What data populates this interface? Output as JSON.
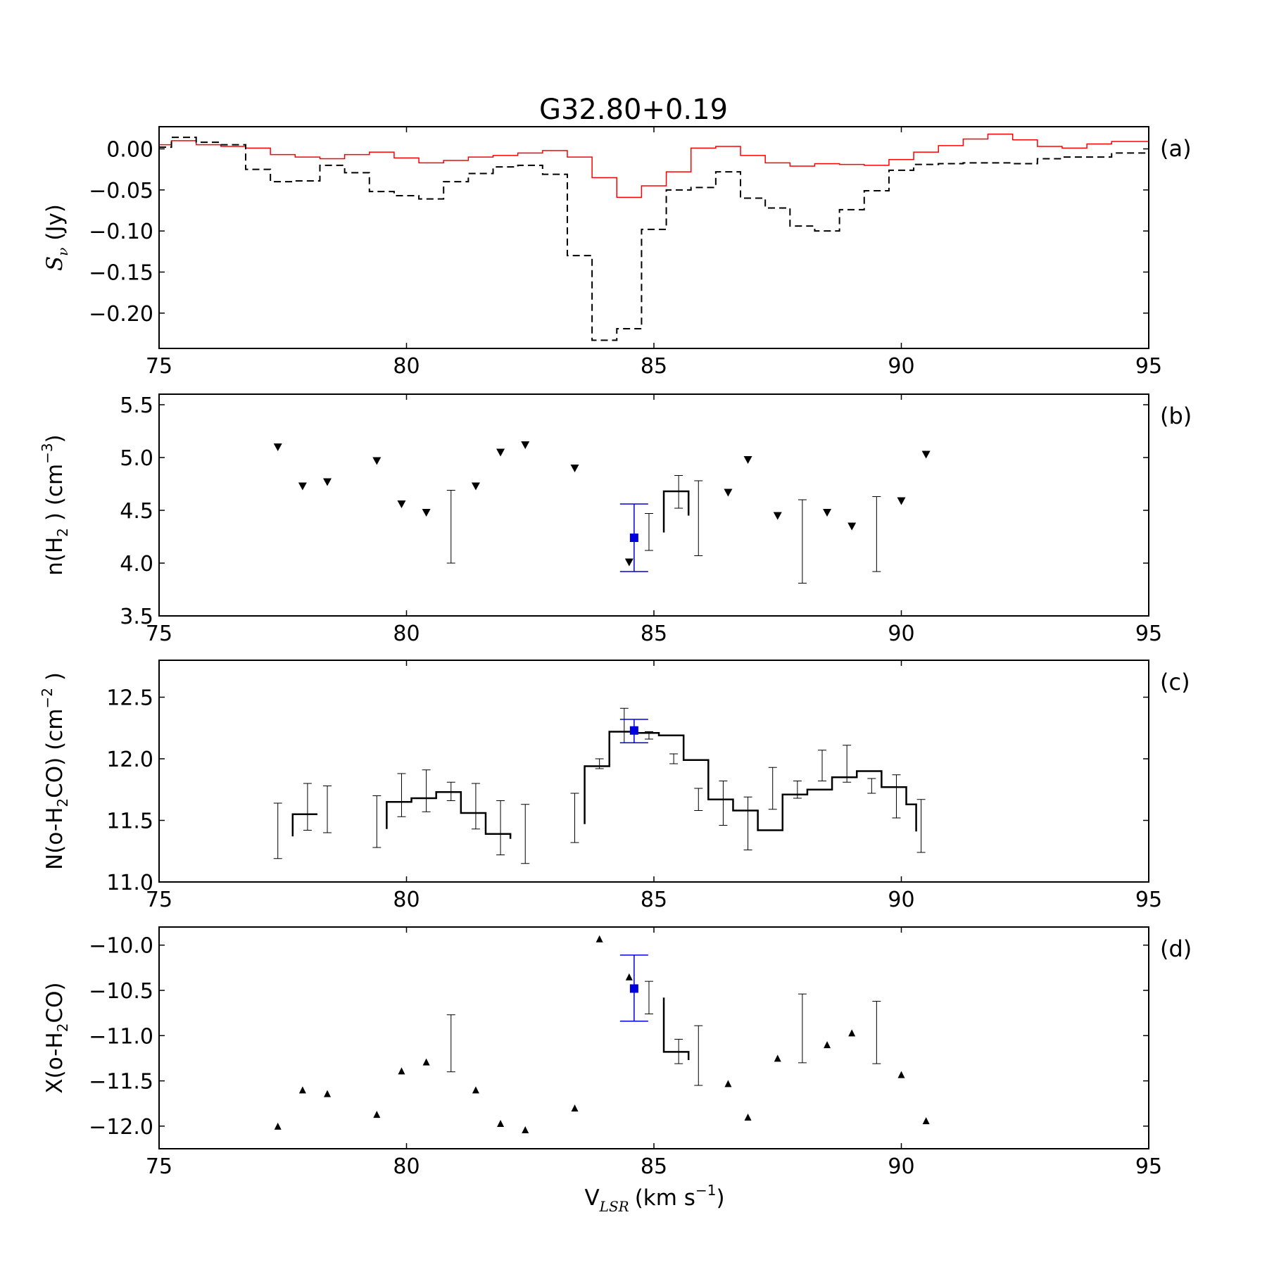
{
  "title": "G32.80+0.19",
  "xlabel": {
    "main": "V",
    "sub": "LSR",
    "unit": "(km s",
    "sup": "−1",
    "close": ")"
  },
  "chart_data": [
    {
      "panel": "(a)",
      "type": "line",
      "drawstyle": "steps",
      "ylabel": {
        "pre": "S",
        "sub": "ν",
        "post": " (Jy)"
      },
      "xlim": [
        75,
        95
      ],
      "ylim": [
        -0.243,
        0.027
      ],
      "xticks": [
        "75",
        "80",
        "85",
        "90",
        "95"
      ],
      "yticks": [
        {
          "v": 0.0,
          "label": "0.00"
        },
        {
          "v": -0.05,
          "label": "−0.05"
        },
        {
          "v": -0.1,
          "label": "−0.10"
        },
        {
          "v": -0.15,
          "label": "−0.15"
        },
        {
          "v": -0.2,
          "label": "−0.20"
        }
      ],
      "series": [
        {
          "color": "#ff0000",
          "dash": "solid",
          "x": [
            75.0,
            75.5,
            76.0,
            76.5,
            77.0,
            77.5,
            78.0,
            78.5,
            79.0,
            79.5,
            80.0,
            80.5,
            81.0,
            81.5,
            82.0,
            82.5,
            83.0,
            83.5,
            84.0,
            84.5,
            85.0,
            85.5,
            86.0,
            86.5,
            87.0,
            87.5,
            88.0,
            88.5,
            89.0,
            89.5,
            90.0,
            90.5,
            91.0,
            91.5,
            92.0,
            92.5,
            93.0,
            93.5,
            94.0,
            94.5,
            95.0
          ],
          "y": [
            0.005,
            0.01,
            0.005,
            0.003,
            0.001,
            -0.007,
            -0.01,
            -0.012,
            -0.007,
            -0.004,
            -0.011,
            -0.017,
            -0.014,
            -0.01,
            -0.008,
            -0.005,
            -0.002,
            -0.01,
            -0.035,
            -0.059,
            -0.045,
            -0.028,
            0.001,
            0.003,
            -0.008,
            -0.017,
            -0.021,
            -0.018,
            -0.019,
            -0.02,
            -0.013,
            -0.004,
            0.004,
            0.012,
            0.018,
            0.011,
            0.003,
            0.001,
            0.006,
            0.009,
            0.009
          ]
        },
        {
          "color": "#000000",
          "dash": "dashed",
          "x": [
            75.0,
            75.5,
            76.0,
            76.5,
            77.0,
            77.5,
            78.0,
            78.5,
            79.0,
            79.5,
            80.0,
            80.5,
            81.0,
            81.5,
            82.0,
            82.5,
            83.0,
            83.5,
            84.0,
            84.5,
            85.0,
            85.5,
            86.0,
            86.5,
            87.0,
            87.5,
            88.0,
            88.5,
            89.0,
            89.5,
            90.0,
            90.5,
            91.0,
            91.5,
            92.0,
            92.5,
            93.0,
            93.5,
            94.0,
            94.5,
            95.0
          ],
          "y": [
            0.002,
            0.014,
            0.008,
            0.005,
            -0.025,
            -0.04,
            -0.039,
            -0.02,
            -0.029,
            -0.052,
            -0.057,
            -0.061,
            -0.04,
            -0.03,
            -0.022,
            -0.02,
            -0.031,
            -0.13,
            -0.233,
            -0.219,
            -0.098,
            -0.05,
            -0.047,
            -0.028,
            -0.06,
            -0.072,
            -0.094,
            -0.1,
            -0.074,
            -0.051,
            -0.026,
            -0.019,
            -0.018,
            -0.017,
            -0.017,
            -0.018,
            -0.012,
            -0.01,
            -0.01,
            -0.005,
            -0.005
          ]
        }
      ]
    },
    {
      "panel": "(b)",
      "type": "scatter",
      "ylabel": {
        "pre": "n(H",
        "sub": "2",
        "post": " ) (cm",
        "sup": "−3",
        "close": ")"
      },
      "xlim": [
        75,
        95
      ],
      "ylim": [
        3.5,
        5.6
      ],
      "xticks": [
        "75",
        "80",
        "85",
        "90",
        "95"
      ],
      "yticks": [
        {
          "v": 3.5,
          "label": "3.5"
        },
        {
          "v": 4.0,
          "label": "4.0"
        },
        {
          "v": 4.5,
          "label": "4.5"
        },
        {
          "v": 5.0,
          "label": "5.0"
        },
        {
          "v": 5.5,
          "label": "5.5"
        }
      ],
      "upper_limits": [
        [
          77.4,
          5.1
        ],
        [
          77.9,
          4.73
        ],
        [
          78.4,
          4.77
        ],
        [
          79.4,
          4.97
        ],
        [
          79.9,
          4.56
        ],
        [
          80.4,
          4.48
        ],
        [
          81.4,
          4.73
        ],
        [
          81.9,
          5.05
        ],
        [
          82.4,
          5.12
        ],
        [
          83.4,
          4.9
        ],
        [
          84.5,
          4.01
        ],
        [
          86.5,
          4.67
        ],
        [
          86.9,
          4.98
        ],
        [
          87.5,
          4.45
        ],
        [
          88.5,
          4.48
        ],
        [
          89.0,
          4.35
        ],
        [
          90.0,
          4.59
        ],
        [
          90.5,
          5.03
        ]
      ],
      "errorbars": [
        [
          80.9,
          4.37,
          4.0,
          4.69
        ],
        [
          84.9,
          4.3,
          4.12,
          4.47
        ],
        [
          85.5,
          4.68,
          4.52,
          4.83
        ],
        [
          85.9,
          4.45,
          4.07,
          4.78
        ],
        [
          88.0,
          4.23,
          3.81,
          4.6
        ],
        [
          89.5,
          4.3,
          3.92,
          4.63
        ]
      ],
      "steps": [
        {
          "x": [
            85.2,
            85.7
          ],
          "y": [
            4.68,
            4.68
          ],
          "left": 4.29,
          "right": 4.45
        }
      ],
      "highlight": {
        "x": 84.6,
        "y": 4.24,
        "lo": 3.92,
        "hi": 4.56,
        "color": "#0000dd"
      }
    },
    {
      "panel": "(c)",
      "type": "scatter",
      "ylabel": {
        "pre": "N(o-H",
        "sub": "2",
        "post": "CO) (cm",
        "sup": "−2",
        "close": " )"
      },
      "xlim": [
        75,
        95
      ],
      "ylim": [
        11.0,
        12.8
      ],
      "xticks": [
        "75",
        "80",
        "85",
        "90",
        "95"
      ],
      "yticks": [
        {
          "v": 11.0,
          "label": "11.0"
        },
        {
          "v": 11.5,
          "label": "11.5"
        },
        {
          "v": 12.0,
          "label": "12.0"
        },
        {
          "v": 12.5,
          "label": "12.5"
        }
      ],
      "errorbars": [
        [
          77.4,
          11.41,
          11.19,
          11.64
        ],
        [
          78.0,
          11.6,
          11.42,
          11.8
        ],
        [
          78.4,
          11.59,
          11.4,
          11.78
        ],
        [
          79.4,
          11.49,
          11.28,
          11.7
        ],
        [
          79.9,
          11.7,
          11.53,
          11.88
        ],
        [
          80.4,
          11.74,
          11.57,
          11.91
        ],
        [
          80.9,
          11.74,
          11.66,
          11.81
        ],
        [
          81.4,
          11.61,
          11.43,
          11.8
        ],
        [
          81.9,
          11.44,
          11.22,
          11.66
        ],
        [
          82.4,
          11.39,
          11.15,
          11.63
        ],
        [
          83.4,
          11.52,
          11.32,
          11.72
        ],
        [
          83.9,
          11.96,
          11.92,
          12.0
        ],
        [
          84.4,
          12.27,
          12.13,
          12.41
        ],
        [
          84.9,
          12.19,
          12.16,
          12.22
        ],
        [
          85.4,
          12.0,
          11.96,
          12.04
        ],
        [
          85.9,
          11.67,
          11.58,
          11.76
        ],
        [
          86.4,
          11.64,
          11.46,
          11.82
        ],
        [
          86.9,
          11.47,
          11.26,
          11.69
        ],
        [
          87.4,
          11.76,
          11.59,
          11.93
        ],
        [
          87.9,
          11.75,
          11.68,
          11.82
        ],
        [
          88.4,
          11.95,
          11.82,
          12.07
        ],
        [
          88.9,
          11.96,
          11.81,
          12.11
        ],
        [
          89.4,
          11.78,
          11.72,
          11.84
        ],
        [
          89.9,
          11.7,
          11.52,
          11.87
        ],
        [
          90.4,
          11.45,
          11.24,
          11.67
        ]
      ],
      "steps": [
        {
          "x": [
            77.7,
            78.2
          ],
          "y": [
            11.55,
            11.55
          ],
          "left": 11.37,
          "right": 11.55
        },
        {
          "x": [
            79.6,
            80.1,
            80.6,
            81.1,
            81.6,
            82.1
          ],
          "y": [
            11.65,
            11.68,
            11.73,
            11.56,
            11.39,
            11.39
          ],
          "left": 11.43,
          "right": 11.35
        },
        {
          "x": [
            83.6,
            84.1,
            84.6,
            85.1,
            85.6,
            86.1,
            86.6,
            87.1,
            87.6,
            88.1,
            88.6,
            89.1,
            89.6,
            90.1,
            90.3
          ],
          "y": [
            11.94,
            12.22,
            12.21,
            12.19,
            11.99,
            11.67,
            11.58,
            11.42,
            11.71,
            11.75,
            11.85,
            11.9,
            11.77,
            11.63,
            11.63
          ],
          "left": 11.47,
          "right": 11.41
        }
      ],
      "highlight": {
        "x": 84.6,
        "y": 12.23,
        "lo": 12.13,
        "hi": 12.32,
        "color": "#0000dd"
      }
    },
    {
      "panel": "(d)",
      "type": "scatter",
      "ylabel": {
        "pre": "X(o-H",
        "sub": "2",
        "post": "CO)"
      },
      "xlim": [
        75,
        95
      ],
      "ylim": [
        -12.25,
        -9.8
      ],
      "xticks": [
        "75",
        "80",
        "85",
        "90",
        "95"
      ],
      "yticks": [
        {
          "v": -10.0,
          "label": "−10.0"
        },
        {
          "v": -10.5,
          "label": "−10.5"
        },
        {
          "v": -11.0,
          "label": "−11.0"
        },
        {
          "v": -11.5,
          "label": "−11.5"
        },
        {
          "v": -12.0,
          "label": "−12.0"
        }
      ],
      "lower_limits": [
        [
          77.4,
          -12.0
        ],
        [
          77.9,
          -11.6
        ],
        [
          78.4,
          -11.64
        ],
        [
          79.4,
          -11.87
        ],
        [
          79.9,
          -11.39
        ],
        [
          80.4,
          -11.29
        ],
        [
          81.4,
          -11.6
        ],
        [
          81.9,
          -11.97
        ],
        [
          82.4,
          -12.04
        ],
        [
          83.4,
          -11.8
        ],
        [
          83.9,
          -9.93
        ],
        [
          84.5,
          -10.35
        ],
        [
          86.5,
          -11.53
        ],
        [
          86.9,
          -11.9
        ],
        [
          87.5,
          -11.25
        ],
        [
          88.5,
          -11.1
        ],
        [
          89.0,
          -10.97
        ],
        [
          90.0,
          -11.43
        ],
        [
          90.5,
          -11.94
        ]
      ],
      "errorbars": [
        [
          80.9,
          -11.1,
          -11.4,
          -10.77
        ],
        [
          84.9,
          -10.58,
          -10.76,
          -10.4
        ],
        [
          85.5,
          -11.18,
          -11.31,
          -11.04
        ],
        [
          85.9,
          -11.22,
          -11.55,
          -10.89
        ],
        [
          88.0,
          -10.92,
          -11.3,
          -10.54
        ],
        [
          89.5,
          -10.97,
          -11.31,
          -10.62
        ]
      ],
      "steps": [
        {
          "x": [
            85.2,
            85.7
          ],
          "y": [
            -11.18,
            -11.18
          ],
          "left": -10.58,
          "right": -11.27
        }
      ],
      "highlight": {
        "x": 84.6,
        "y": -10.48,
        "lo": -10.84,
        "hi": -10.11,
        "color": "#0000dd"
      }
    }
  ]
}
